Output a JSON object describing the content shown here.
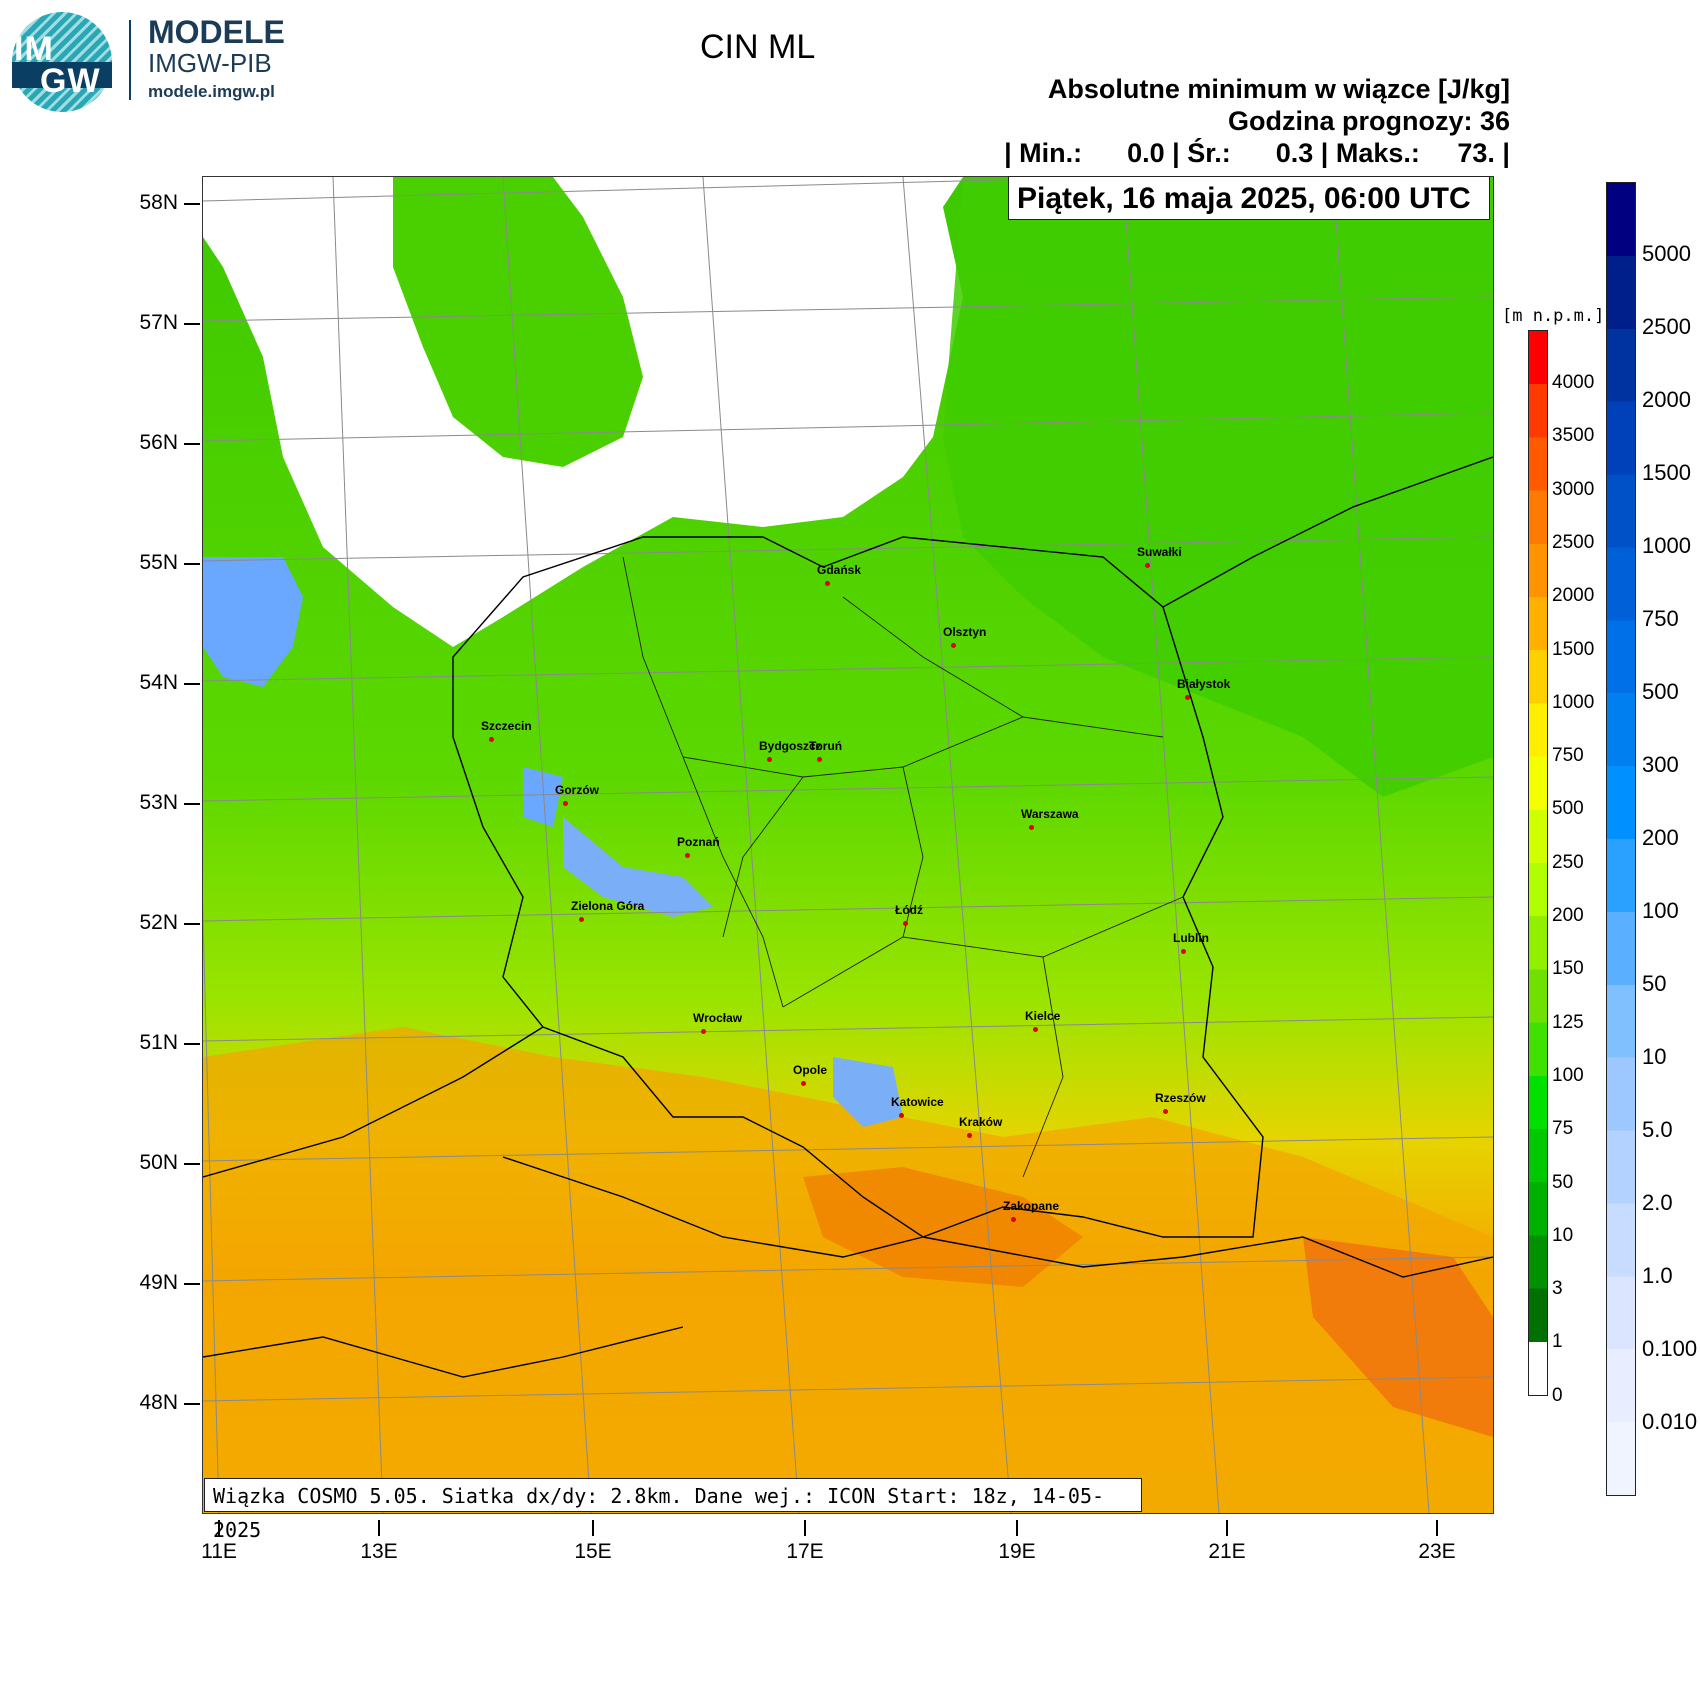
{
  "brand": {
    "logo_text_top": "IM",
    "logo_text_bottom": "GW",
    "line1": "MODELE",
    "line2": "IMGW-PIB",
    "line3": "modele.imgw.pl"
  },
  "header": {
    "title": "CIN ML",
    "subtitle": "Absolutne minimum w wiązce [J/kg]",
    "forecast_hour": "Godzina prognozy: 36",
    "stats": "| Min.:      0.0 | Śr.:      0.3 | Maks.:     73. |",
    "date": "Piątek, 16 maja 2025, 06:00 UTC"
  },
  "footer": {
    "info": "Wiązka COSMO 5.05. Siatka dx/dy: 2.8km. Dane wej.: ICON Start: 18z, 14-05-2025"
  },
  "axes": {
    "lat_labels": [
      "58N",
      "57N",
      "56N",
      "55N",
      "54N",
      "53N",
      "52N",
      "51N",
      "50N",
      "49N",
      "48N"
    ],
    "lon_labels": [
      "11E",
      "13E",
      "15E",
      "17E",
      "19E",
      "21E",
      "23E"
    ]
  },
  "cities": [
    {
      "name": "Gdańsk"
    },
    {
      "name": "Suwałki"
    },
    {
      "name": "Olsztyn"
    },
    {
      "name": "Białystok"
    },
    {
      "name": "Szczecin"
    },
    {
      "name": "Bydgoszcz"
    },
    {
      "name": "Toruń"
    },
    {
      "name": "Gorzów"
    },
    {
      "name": "Poznań"
    },
    {
      "name": "Warszawa"
    },
    {
      "name": "Zielona Góra"
    },
    {
      "name": "Łódź"
    },
    {
      "name": "Lublin"
    },
    {
      "name": "Wrocław"
    },
    {
      "name": "Kielce"
    },
    {
      "name": "Opole"
    },
    {
      "name": "Rzeszów"
    },
    {
      "name": "Katowice"
    },
    {
      "name": "Kraków"
    },
    {
      "name": "Zakopane"
    }
  ],
  "terrain_legend": {
    "unit": "[m n.p.m.]",
    "labels": [
      "4000",
      "3500",
      "3000",
      "2500",
      "2000",
      "1500",
      "1000",
      "750",
      "500",
      "250",
      "200",
      "150",
      "125",
      "100",
      "75",
      "50",
      "10",
      "3",
      "1",
      "0"
    ],
    "colors": [
      "#ff0000",
      "#ff3a00",
      "#ff5a00",
      "#ff7a00",
      "#ff9400",
      "#ffb000",
      "#ffd000",
      "#ffee00",
      "#f4ff00",
      "#d0ff00",
      "#b0ff00",
      "#90f000",
      "#70e000",
      "#40e000",
      "#00e000",
      "#00c800",
      "#00b000",
      "#009000",
      "#007000",
      "#ffffff"
    ]
  },
  "cin_legend": {
    "labels": [
      "5000",
      "2500",
      "2000",
      "1500",
      "1000",
      "750",
      "500",
      "300",
      "200",
      "100",
      "50",
      "10",
      "5.0",
      "2.0",
      "1.0",
      "0.100",
      "0.010"
    ],
    "colors": [
      "#000080",
      "#001f8a",
      "#0033a0",
      "#0040b8",
      "#0050c8",
      "#0060d8",
      "#0070e8",
      "#0080f0",
      "#0090ff",
      "#2aa0ff",
      "#5ab0ff",
      "#80c0ff",
      "#9cc8ff",
      "#b4d2ff",
      "#c8dcff",
      "#dbe5ff",
      "#e8eeff",
      "#f0f4ff"
    ]
  }
}
